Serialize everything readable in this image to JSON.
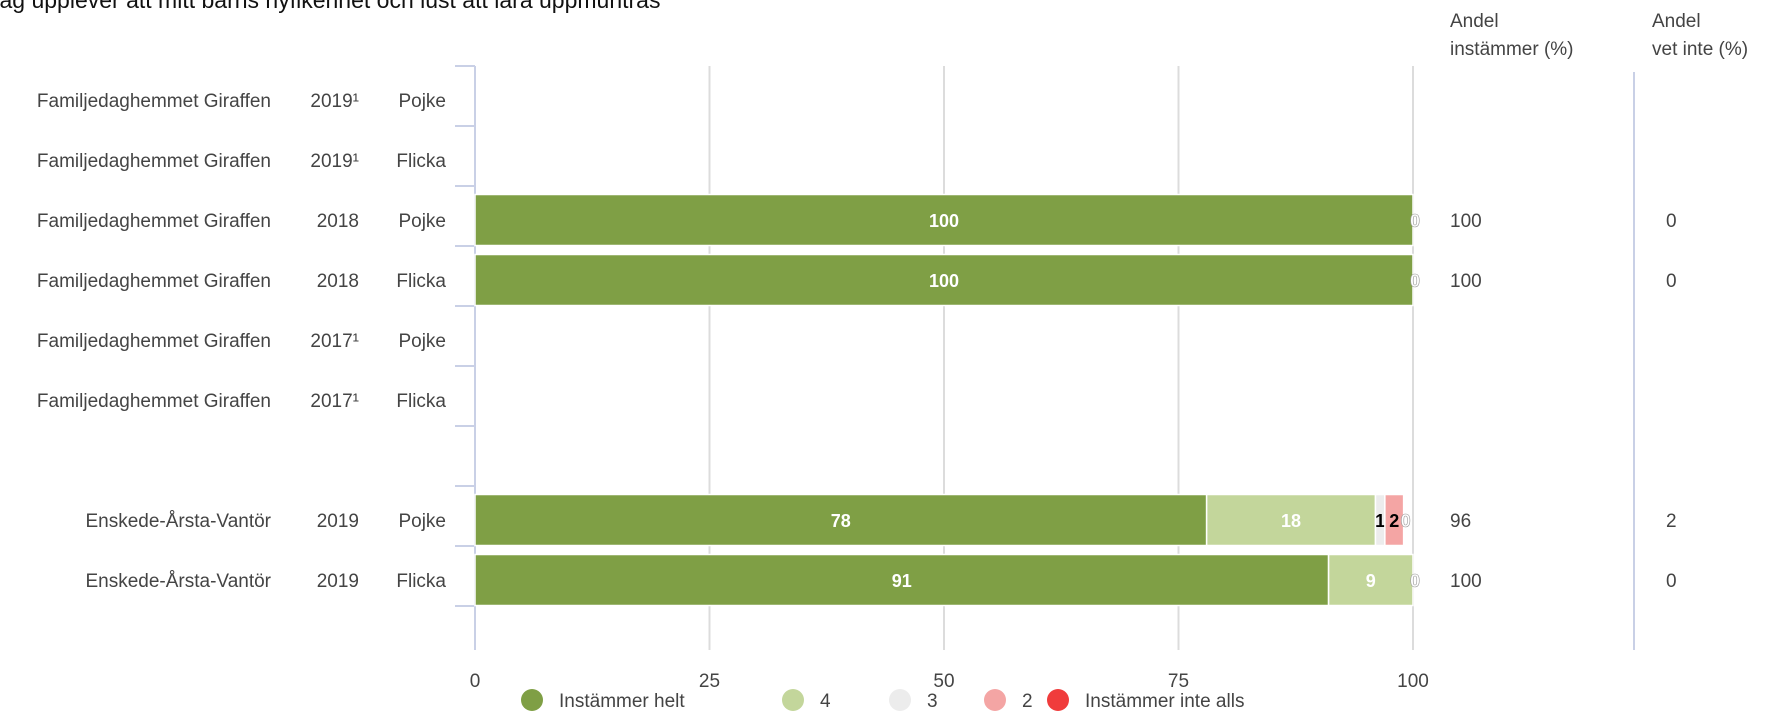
{
  "chart_data": {
    "type": "bar",
    "orientation": "horizontal",
    "stacked": true,
    "title": "Jag upplever att mitt barns nyfikenhet och lust att lära uppmuntras",
    "xlim": [
      0,
      100
    ],
    "xticks": [
      "0",
      "25",
      "50",
      "75",
      "100"
    ],
    "grid": true,
    "legend_position": "bottom",
    "col_headers": {
      "instammer_line1": "Andel",
      "instammer_line2": "instämmer (%)",
      "vetinte_line1": "Andel",
      "vetinte_line2": "vet inte (%)"
    },
    "series": [
      {
        "name": "Instämmer helt",
        "color": "#7f9f45"
      },
      {
        "name": "4",
        "color": "#c3d69b"
      },
      {
        "name": "3",
        "color": "#ececec"
      },
      {
        "name": "2",
        "color": "#f4a5a4"
      },
      {
        "name": "Instämmer inte alls",
        "color": "#f03c3c"
      }
    ],
    "rows": [
      {
        "unit": "Familjedaghemmet Giraffen",
        "year": "2019¹",
        "gender": "Pojke",
        "values": [],
        "instammer": "",
        "vetinte": ""
      },
      {
        "unit": "Familjedaghemmet Giraffen",
        "year": "2019¹",
        "gender": "Flicka",
        "values": [],
        "instammer": "",
        "vetinte": ""
      },
      {
        "unit": "Familjedaghemmet Giraffen",
        "year": "2018",
        "gender": "Pojke",
        "values": [
          100,
          0,
          0,
          0,
          0
        ],
        "labels": [
          "100",
          "",
          "",
          "",
          "0"
        ],
        "instammer": "100",
        "vetinte": "0"
      },
      {
        "unit": "Familjedaghemmet Giraffen",
        "year": "2018",
        "gender": "Flicka",
        "values": [
          100,
          0,
          0,
          0,
          0
        ],
        "labels": [
          "100",
          "",
          "",
          "",
          "0"
        ],
        "instammer": "100",
        "vetinte": "0"
      },
      {
        "unit": "Familjedaghemmet Giraffen",
        "year": "2017¹",
        "gender": "Pojke",
        "values": [],
        "instammer": "",
        "vetinte": ""
      },
      {
        "unit": "Familjedaghemmet Giraffen",
        "year": "2017¹",
        "gender": "Flicka",
        "values": [],
        "instammer": "",
        "vetinte": ""
      },
      {
        "unit": "",
        "year": "",
        "gender": "",
        "values": [],
        "instammer": "",
        "vetinte": ""
      },
      {
        "unit": "Enskede-Årsta-Vantör",
        "year": "2019",
        "gender": "Pojke",
        "values": [
          78,
          18,
          1,
          2,
          0
        ],
        "labels": [
          "78",
          "18",
          "1",
          "2",
          "0"
        ],
        "instammer": "96",
        "vetinte": "2"
      },
      {
        "unit": "Enskede-Årsta-Vantör",
        "year": "2019",
        "gender": "Flicka",
        "values": [
          91,
          9,
          0,
          0,
          0
        ],
        "labels": [
          "91",
          "9",
          "",
          "",
          "0"
        ],
        "instammer": "100",
        "vetinte": "0"
      }
    ]
  }
}
